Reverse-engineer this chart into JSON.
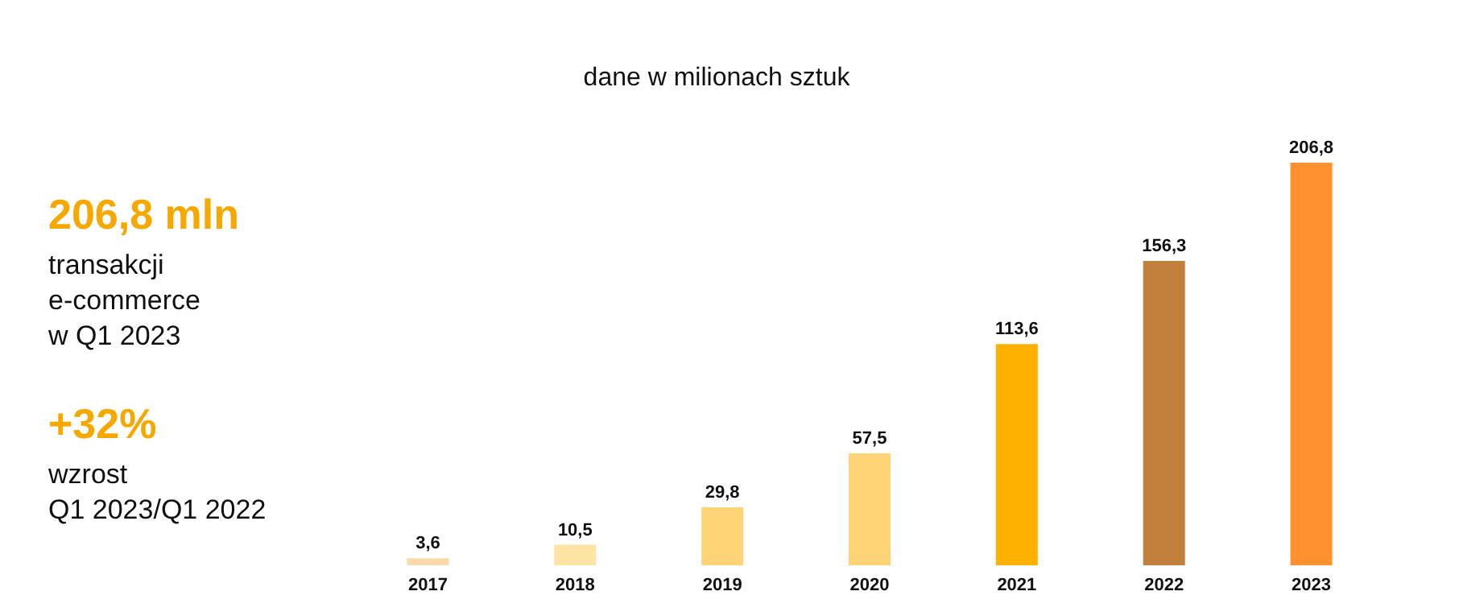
{
  "chart_data": {
    "type": "bar",
    "title": "dane w milionach sztuk",
    "categories": [
      "2017",
      "2018",
      "2019",
      "2020",
      "2021",
      "2022",
      "2023"
    ],
    "values": [
      3.6,
      10.5,
      29.8,
      57.5,
      113.6,
      156.3,
      206.8
    ],
    "colors": [
      "#fcd9aa",
      "#fde3a4",
      "#fed476",
      "#fed476",
      "#feb100",
      "#c1803c",
      "#ff922e"
    ],
    "tick_labels": "x",
    "value_labels": [
      "3,6",
      "10,5",
      "29,8",
      "57,5",
      "113,6",
      "156,3",
      "206,8"
    ],
    "annotations": [
      "206,8 mln",
      "transakcji\ne-commerce\nw Q1 2023",
      "+32%",
      "wzrost\nQ1 2023/Q1 2022"
    ]
  }
}
